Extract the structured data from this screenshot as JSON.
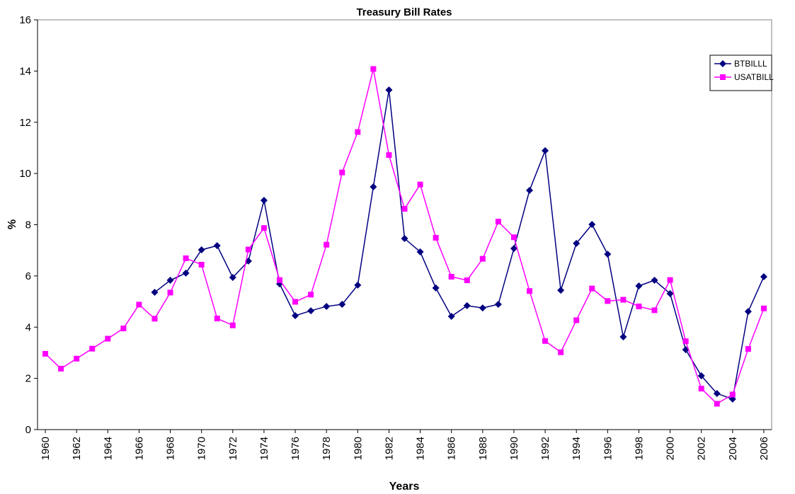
{
  "chart_data": {
    "type": "line",
    "title": "Treasury Bill Rates",
    "x_label": "Years",
    "y_label": "%",
    "x": [
      1960,
      1961,
      1962,
      1963,
      1964,
      1965,
      1966,
      1967,
      1968,
      1969,
      1970,
      1971,
      1972,
      1973,
      1974,
      1975,
      1976,
      1977,
      1978,
      1979,
      1980,
      1981,
      1982,
      1983,
      1984,
      1985,
      1986,
      1987,
      1988,
      1989,
      1990,
      1991,
      1992,
      1993,
      1994,
      1995,
      1996,
      1997,
      1998,
      1999,
      2000,
      2001,
      2002,
      2003,
      2004,
      2005,
      2006
    ],
    "xlim": [
      1959.5,
      2006.5
    ],
    "xticks": [
      1960,
      1962,
      1964,
      1966,
      1968,
      1970,
      1972,
      1974,
      1976,
      1978,
      1980,
      1982,
      1984,
      1986,
      1988,
      1990,
      1992,
      1994,
      1996,
      1998,
      2000,
      2002,
      2004,
      2006
    ],
    "ylim": [
      0,
      16
    ],
    "yticks": [
      0,
      2,
      4,
      6,
      8,
      10,
      12,
      14,
      16
    ],
    "grid": false,
    "legend_position": "upper-right",
    "series": [
      {
        "name": "BTBILLL",
        "color": "#000080",
        "marker": "diamond",
        "values": [
          null,
          null,
          null,
          null,
          null,
          null,
          null,
          5.36,
          5.83,
          6.11,
          7.02,
          7.18,
          5.94,
          6.58,
          8.95,
          5.69,
          4.45,
          4.64,
          4.81,
          4.89,
          5.64,
          9.48,
          13.26,
          7.46,
          6.94,
          5.53,
          4.42,
          4.84,
          4.75,
          4.89,
          7.07,
          9.34,
          10.89,
          5.44,
          7.27,
          8.01,
          6.85,
          3.62,
          5.61,
          5.83,
          5.31,
          3.12,
          2.1,
          1.41,
          1.19,
          4.61,
          5.97
        ]
      },
      {
        "name": "USATBILL",
        "color": "#ff00ff",
        "marker": "square",
        "values": [
          2.96,
          2.38,
          2.77,
          3.16,
          3.55,
          3.95,
          4.88,
          4.33,
          5.35,
          6.69,
          6.44,
          4.34,
          4.07,
          7.03,
          7.87,
          5.84,
          4.99,
          5.27,
          7.22,
          10.04,
          11.62,
          14.08,
          10.72,
          8.62,
          9.57,
          7.49,
          5.97,
          5.83,
          6.67,
          8.12,
          7.51,
          5.41,
          3.46,
          3.02,
          4.27,
          5.51,
          5.02,
          5.07,
          4.81,
          4.66,
          5.84,
          3.45,
          1.6,
          1.01,
          1.37,
          3.15,
          4.73
        ]
      }
    ]
  }
}
